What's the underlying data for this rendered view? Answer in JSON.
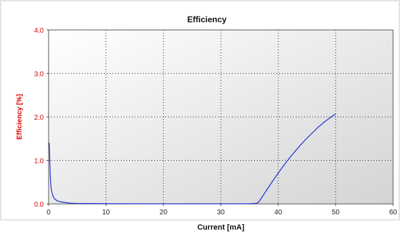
{
  "chart_data": {
    "type": "line",
    "title": "Efficiency",
    "xlabel": "Current [mA]",
    "ylabel": "Efficiency [%]",
    "xlim": [
      0,
      60
    ],
    "ylim": [
      0,
      4.0
    ],
    "xticks": [
      0,
      10,
      20,
      30,
      40,
      50,
      60
    ],
    "xtick_labels": [
      "0",
      "10",
      "20",
      "30",
      "40",
      "50",
      "60"
    ],
    "yticks": [
      0,
      1,
      2,
      3,
      4
    ],
    "ytick_labels": [
      "0.0",
      "1.0",
      "2.0",
      "3.0",
      "4.0"
    ],
    "grid": true,
    "legend": "none",
    "series": [
      {
        "color": "#1f2fd6",
        "x": [
          0.1,
          0.15,
          0.2,
          0.3,
          0.4,
          0.6,
          0.8,
          1.0,
          1.5,
          2.0,
          3.0,
          4.0,
          5.0,
          10,
          20,
          30,
          35,
          36.0,
          36.5,
          37,
          38,
          39,
          40,
          41,
          42,
          43,
          44,
          45,
          46,
          47,
          48,
          49,
          50
        ],
        "y": [
          1.4,
          1.3,
          1.0,
          0.6,
          0.4,
          0.25,
          0.17,
          0.12,
          0.07,
          0.05,
          0.03,
          0.015,
          0.01,
          0.005,
          0.003,
          0.003,
          0.005,
          0.01,
          0.03,
          0.12,
          0.32,
          0.52,
          0.71,
          0.89,
          1.06,
          1.22,
          1.37,
          1.51,
          1.64,
          1.77,
          1.88,
          1.98,
          2.07
        ]
      }
    ]
  },
  "colors": {
    "plot_bg_light": "#ffffff",
    "plot_bg_dark": "#d4d4d4",
    "grid": "#222222",
    "ylabel": "#dd0000",
    "series": "#1f2fd6"
  }
}
